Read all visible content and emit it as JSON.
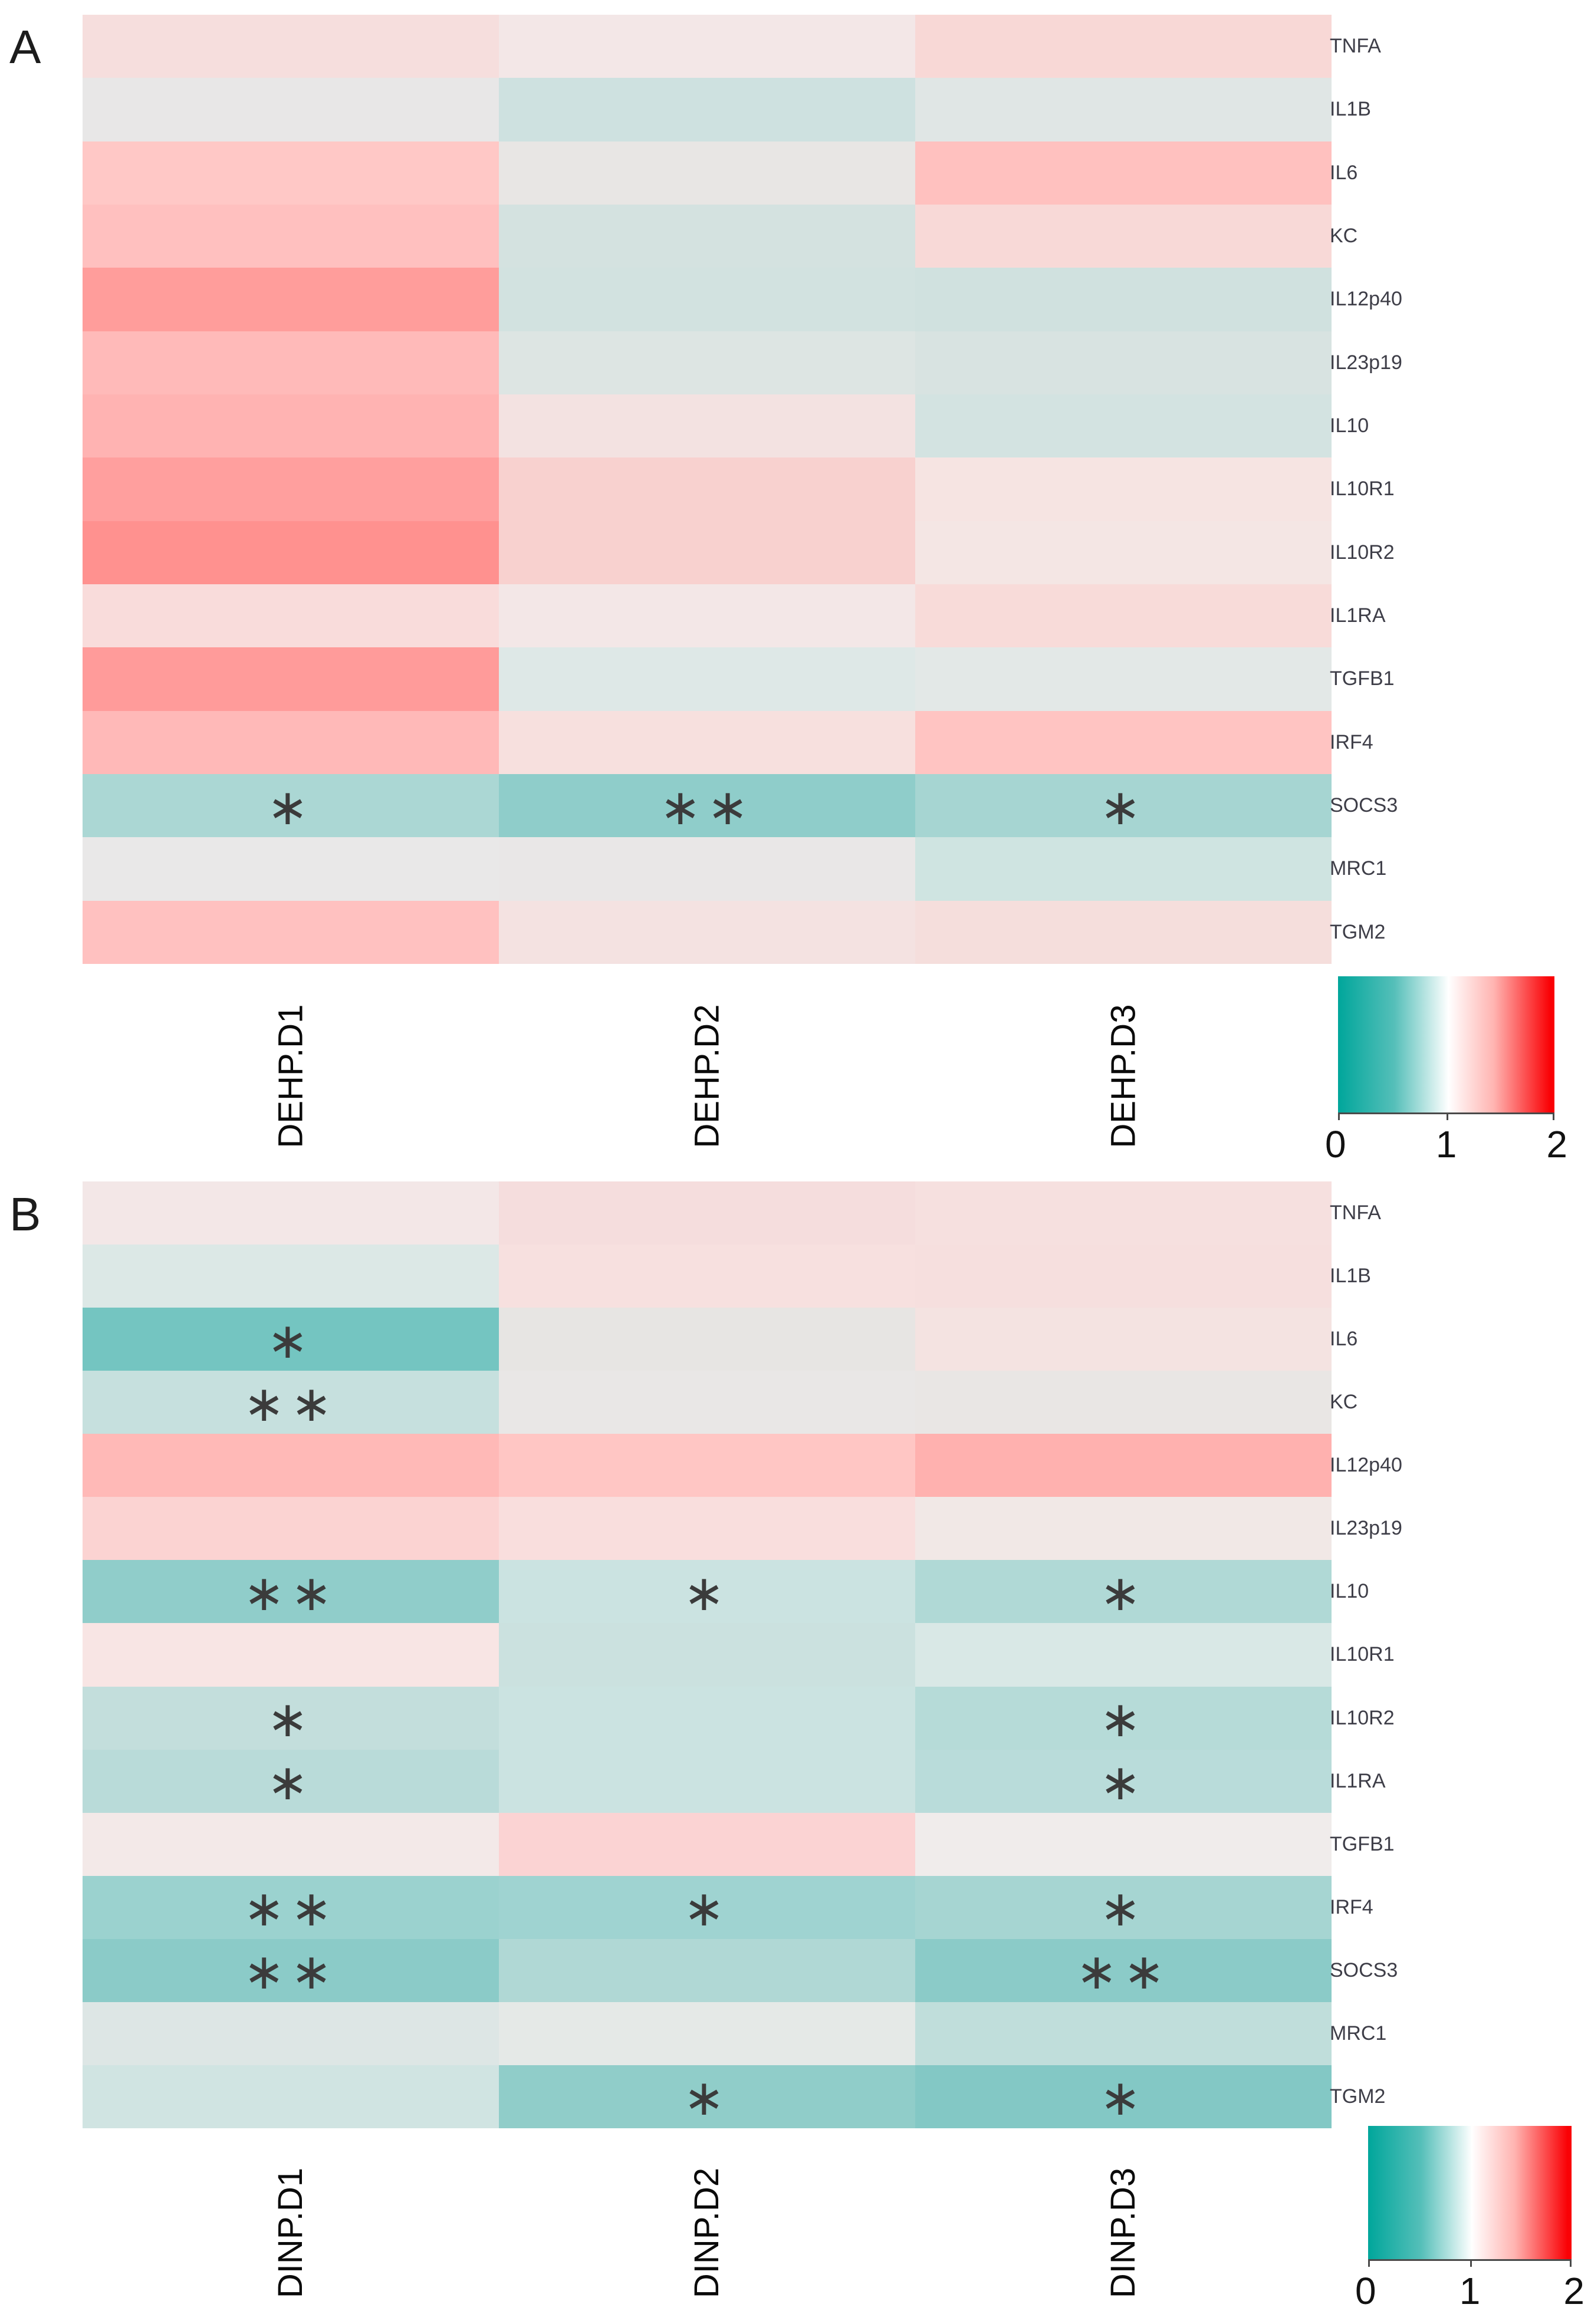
{
  "panelA": {
    "letter": "A",
    "columns": [
      "DEHP.D1",
      "DEHP.D2",
      "DEHP.D3"
    ],
    "rows": [
      "TNFA",
      "IL1B",
      "IL6",
      "KC",
      "IL12p40",
      "IL23p19",
      "IL10",
      "IL10R1",
      "IL10R2",
      "IL1RA",
      "TGFB1",
      "IRF4",
      "SOCS3",
      "MRC1",
      "TGM2"
    ],
    "colors": [
      [
        "#f6dedd",
        "#f3e7e7",
        "#f8d8d6"
      ],
      [
        "#e8e7e7",
        "#cee1e0",
        "#e0e6e5"
      ],
      [
        "#ffc8c6",
        "#e8e6e4",
        "#ffc1bf"
      ],
      [
        "#ffc0bf",
        "#d4e2e0",
        "#f8d9d7"
      ],
      [
        "#ff9d9b",
        "#d2e2e0",
        "#d0e1df"
      ],
      [
        "#ffbab9",
        "#dde5e3",
        "#d8e3e1"
      ],
      [
        "#ffb3b2",
        "#f3e2e1",
        "#d3e3e1"
      ],
      [
        "#ff9f9e",
        "#f8d1cf",
        "#f6e4e2"
      ],
      [
        "#ff918f",
        "#f8d1cf",
        "#f4e6e4"
      ],
      [
        "#f9dcdb",
        "#f3e7e7",
        "#f8dbd9"
      ],
      [
        "#ff9b9a",
        "#dee8e7",
        "#e3e8e7"
      ],
      [
        "#ffb9b8",
        "#f7e0de",
        "#ffc4c2"
      ],
      [
        "#abd7d4",
        "#8fcdca",
        "#a6d5d2"
      ],
      [
        "#e9e8e8",
        "#e9e7e7",
        "#cfe4e1"
      ],
      [
        "#ffc1c0",
        "#f4e2e1",
        "#f5dedc"
      ]
    ],
    "sig": [
      [
        "",
        "",
        ""
      ],
      [
        "",
        "",
        ""
      ],
      [
        "",
        "",
        ""
      ],
      [
        "",
        "",
        ""
      ],
      [
        "",
        "",
        ""
      ],
      [
        "",
        "",
        ""
      ],
      [
        "",
        "",
        ""
      ],
      [
        "",
        "",
        ""
      ],
      [
        "",
        "",
        ""
      ],
      [
        "",
        "",
        ""
      ],
      [
        "",
        "",
        ""
      ],
      [
        "",
        "",
        ""
      ],
      [
        "*",
        "**",
        "*"
      ],
      [
        "",
        "",
        ""
      ],
      [
        "",
        "",
        ""
      ]
    ]
  },
  "panelB": {
    "letter": "B",
    "columns": [
      "DINP.D1",
      "DINP.D2",
      "DINP.D3"
    ],
    "rows": [
      "TNFA",
      "IL1B",
      "IL6",
      "KC",
      "IL12p40",
      "IL23p19",
      "IL10",
      "IL10R1",
      "IL10R2",
      "IL1RA",
      "TGFB1",
      "IRF4",
      "SOCS3",
      "MRC1",
      "TGM2"
    ],
    "colors": [
      [
        "#f3e7e7",
        "#f5dddd",
        "#f6e0df"
      ],
      [
        "#dce8e6",
        "#f7e0df",
        "#f6dfde"
      ],
      [
        "#74c5c1",
        "#e7e5e3",
        "#f4e3e1"
      ],
      [
        "#c6e0de",
        "#e9e7e6",
        "#e9e6e4"
      ],
      [
        "#ffb9b7",
        "#ffc6c4",
        "#ffb1af"
      ],
      [
        "#fbd3d2",
        "#f9dedd",
        "#f1e8e6"
      ],
      [
        "#90cdca",
        "#cbe3e1",
        "#b0d9d6"
      ],
      [
        "#f8e5e4",
        "#cbe1df",
        "#d9e8e6"
      ],
      [
        "#c3dedc",
        "#cbe3e1",
        "#b6dbd8"
      ],
      [
        "#b9dbd9",
        "#cbe3e1",
        "#b9dcda"
      ],
      [
        "#f3e9e8",
        "#fbd3d3",
        "#f0eceb"
      ],
      [
        "#9bd2cf",
        "#9fd3d1",
        "#a6d5d2"
      ],
      [
        "#8bcbc8",
        "#b0d8d5",
        "#8bcbc8"
      ],
      [
        "#dde6e5",
        "#e5e9e7",
        "#c0dedb"
      ],
      [
        "#d0e4e2",
        "#90cdc9",
        "#83c8c5"
      ]
    ],
    "sig": [
      [
        "",
        "",
        ""
      ],
      [
        "",
        "",
        ""
      ],
      [
        "*",
        "",
        ""
      ],
      [
        "**",
        "",
        ""
      ],
      [
        "",
        "",
        ""
      ],
      [
        "",
        "",
        ""
      ],
      [
        "**",
        "*",
        "*"
      ],
      [
        "",
        "",
        ""
      ],
      [
        "*",
        "",
        "*"
      ],
      [
        "*",
        "",
        "*"
      ],
      [
        "",
        "",
        ""
      ],
      [
        "**",
        "*",
        "*"
      ],
      [
        "**",
        "",
        "**"
      ],
      [
        "",
        "",
        ""
      ],
      [
        "",
        "*",
        "*"
      ]
    ]
  },
  "colorbar": {
    "ticks": [
      "0",
      "1",
      "2"
    ],
    "teal": "#00a69b",
    "white": "#ffffff",
    "red": "#fa0105"
  },
  "chart_data": [
    {
      "type": "heatmap",
      "panel": "A",
      "title": "",
      "categories": [
        "DEHP.D1",
        "DEHP.D2",
        "DEHP.D3"
      ],
      "rows": [
        "TNFA",
        "IL1B",
        "IL6",
        "KC",
        "IL12p40",
        "IL23p19",
        "IL10",
        "IL10R1",
        "IL10R2",
        "IL1RA",
        "TGFB1",
        "IRF4",
        "SOCS3",
        "MRC1",
        "TGM2"
      ],
      "values": [
        [
          1.15,
          1.08,
          1.2
        ],
        [
          1.0,
          0.85,
          0.95
        ],
        [
          1.3,
          1.0,
          1.35
        ],
        [
          1.35,
          0.88,
          1.15
        ],
        [
          1.55,
          0.87,
          0.87
        ],
        [
          1.35,
          0.9,
          0.9
        ],
        [
          1.4,
          1.08,
          0.9
        ],
        [
          1.55,
          1.25,
          1.12
        ],
        [
          1.6,
          1.25,
          1.1
        ],
        [
          1.18,
          1.08,
          1.18
        ],
        [
          1.55,
          0.92,
          0.95
        ],
        [
          1.38,
          1.15,
          1.35
        ],
        [
          0.75,
          0.55,
          0.72
        ],
        [
          1.02,
          1.0,
          0.85
        ],
        [
          1.35,
          1.1,
          1.15
        ]
      ],
      "significance": [
        [
          "",
          "",
          ""
        ],
        [
          "",
          "",
          ""
        ],
        [
          "",
          "",
          ""
        ],
        [
          "",
          "",
          ""
        ],
        [
          "",
          "",
          ""
        ],
        [
          "",
          "",
          ""
        ],
        [
          "",
          "",
          ""
        ],
        [
          "",
          "",
          ""
        ],
        [
          "",
          "",
          ""
        ],
        [
          "",
          "",
          ""
        ],
        [
          "",
          "",
          ""
        ],
        [
          "",
          "",
          ""
        ],
        [
          "*",
          "**",
          "*"
        ],
        [
          "",
          "",
          ""
        ],
        [
          "",
          "",
          ""
        ]
      ],
      "colorscale": {
        "0": "#00a69b",
        "1": "#ffffff",
        "2": "#fa0105"
      },
      "value_range": [
        0,
        2
      ],
      "legend_ticks": [
        0,
        1,
        2
      ],
      "legend_position": "bottom-right",
      "grid": false
    },
    {
      "type": "heatmap",
      "panel": "B",
      "title": "",
      "categories": [
        "DINP.D1",
        "DINP.D2",
        "DINP.D3"
      ],
      "rows": [
        "TNFA",
        "IL1B",
        "IL6",
        "KC",
        "IL12p40",
        "IL23p19",
        "IL10",
        "IL10R1",
        "IL10R2",
        "IL1RA",
        "TGFB1",
        "IRF4",
        "SOCS3",
        "MRC1",
        "TGM2"
      ],
      "values": [
        [
          1.05,
          1.15,
          1.12
        ],
        [
          0.92,
          1.12,
          1.12
        ],
        [
          0.45,
          1.0,
          1.1
        ],
        [
          0.82,
          1.0,
          1.0
        ],
        [
          1.4,
          1.35,
          1.5
        ],
        [
          1.22,
          1.15,
          1.05
        ],
        [
          0.55,
          0.8,
          0.65
        ],
        [
          1.08,
          0.8,
          0.88
        ],
        [
          0.78,
          0.8,
          0.68
        ],
        [
          0.72,
          0.8,
          0.7
        ],
        [
          1.05,
          1.22,
          1.02
        ],
        [
          0.6,
          0.62,
          0.68
        ],
        [
          0.55,
          0.72,
          0.55
        ],
        [
          0.92,
          0.98,
          0.82
        ],
        [
          0.85,
          0.55,
          0.5
        ]
      ],
      "significance": [
        [
          "",
          "",
          ""
        ],
        [
          "",
          "",
          ""
        ],
        [
          "*",
          "",
          ""
        ],
        [
          "**",
          "",
          ""
        ],
        [
          "",
          "",
          ""
        ],
        [
          "",
          "",
          ""
        ],
        [
          "**",
          "*",
          "*"
        ],
        [
          "",
          "",
          ""
        ],
        [
          "*",
          "",
          "*"
        ],
        [
          "*",
          "",
          "*"
        ],
        [
          "",
          "",
          ""
        ],
        [
          "**",
          "*",
          "*"
        ],
        [
          "**",
          "",
          "**"
        ],
        [
          "",
          "",
          ""
        ],
        [
          "",
          "*",
          "*"
        ]
      ],
      "colorscale": {
        "0": "#00a69b",
        "1": "#ffffff",
        "2": "#fa0105"
      },
      "value_range": [
        0,
        2
      ],
      "legend_ticks": [
        0,
        1,
        2
      ],
      "legend_position": "bottom-right",
      "grid": false
    }
  ]
}
